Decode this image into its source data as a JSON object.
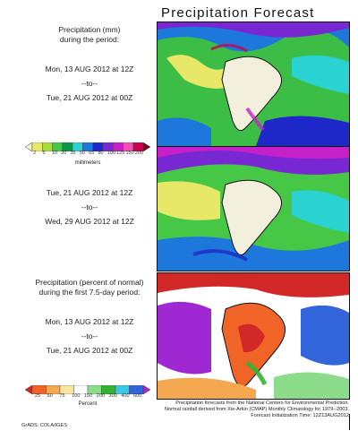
{
  "title": "Precipitation Forecast",
  "panel1": {
    "heading": [
      "Precipitation (mm)",
      "during the period:"
    ],
    "start": "Mon, 13 AUG 2012 at 12Z",
    "to": "--to--",
    "end": "Tue, 21 AUG 2012 at 00Z"
  },
  "colorbar1": {
    "ticks": [
      "2",
      "5",
      "10",
      "20",
      "35",
      "50",
      "65",
      "80",
      "100",
      "125",
      "150",
      "200"
    ],
    "unit": "millimeters",
    "colors": [
      "#f2f0dc",
      "#e8e868",
      "#a8dc3c",
      "#46c846",
      "#0a9646",
      "#2ad2d2",
      "#1e78dc",
      "#1e28c8",
      "#7828d2",
      "#c820c8",
      "#f050b4",
      "#c80050",
      "#800020"
    ]
  },
  "panel2": {
    "start": "Tue, 21 AUG 2012 at 12Z",
    "to": "--to--",
    "end": "Wed, 29 AUG 2012 at 12Z"
  },
  "panel3": {
    "heading": [
      "Precipitation (percent of normal)",
      "during the first 7.5-day period:"
    ],
    "start": "Mon, 13 AUG 2012 at 12Z",
    "to": "--to--",
    "end": "Tue, 21 AUG 2012 at 00Z"
  },
  "colorbar2": {
    "ticks": [
      "25",
      "50",
      "75",
      "100",
      "150",
      "200",
      "300",
      "400",
      "600"
    ],
    "unit": "Percent",
    "colors": [
      "#d22828",
      "#f06428",
      "#f4a850",
      "#f8e6a0",
      "#ffffff",
      "#8cdc8c",
      "#32b432",
      "#3cc8e6",
      "#3264dc",
      "#a028d2"
    ]
  },
  "footer": [
    "Precipitation forecasts from the National Centers for Environmental Prediction.",
    "Normal rainfall derived from Xie-Arkin (CMAP) Monthly Climatology for 1979--2003.",
    "Forecast Initialization Time: 12Z13AUG2012"
  ],
  "credit": "GrADS: COLA/IGES"
}
